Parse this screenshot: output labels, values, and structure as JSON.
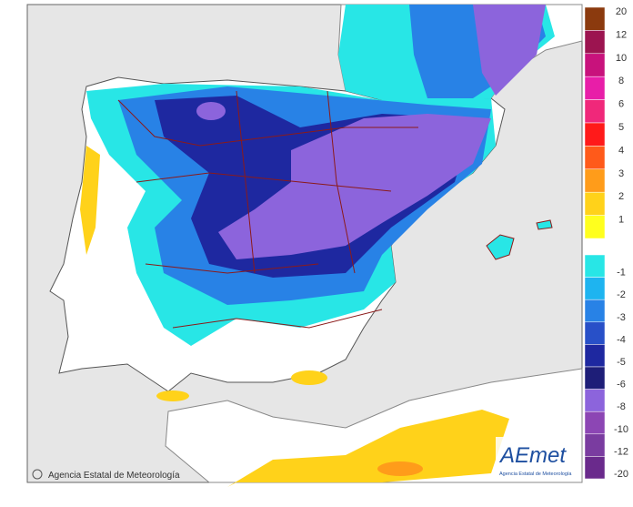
{
  "legend": {
    "items": [
      {
        "value": 20,
        "color": "#8b3a0e"
      },
      {
        "value": 12,
        "color": "#9c1450"
      },
      {
        "value": 10,
        "color": "#c8127c"
      },
      {
        "value": 8,
        "color": "#e81ea8"
      },
      {
        "value": 6,
        "color": "#f0287a"
      },
      {
        "value": 5,
        "color": "#ff1a1a"
      },
      {
        "value": 4,
        "color": "#ff5a1a"
      },
      {
        "value": 3,
        "color": "#ff9c1a"
      },
      {
        "value": 2,
        "color": "#ffd21a"
      },
      {
        "value": 1,
        "color": "#ffff1e"
      },
      {
        "value": -1,
        "color": "#28e6e6"
      },
      {
        "value": -2,
        "color": "#1eb4f0"
      },
      {
        "value": -3,
        "color": "#2882e6"
      },
      {
        "value": -4,
        "color": "#2850c8"
      },
      {
        "value": -5,
        "color": "#1e28a0"
      },
      {
        "value": -6,
        "color": "#1e1e78"
      },
      {
        "value": -8,
        "color": "#8c64dc"
      },
      {
        "value": -10,
        "color": "#8c46b4"
      },
      {
        "value": -12,
        "color": "#7a3ca0"
      },
      {
        "value": -20,
        "color": "#6a2a8c"
      }
    ]
  },
  "footer": {
    "copyright": "Agencia Estatal de Meteorología"
  },
  "logo": {
    "name": "AEmet",
    "subtitle": "Agencia Estatal de Meteorología"
  }
}
